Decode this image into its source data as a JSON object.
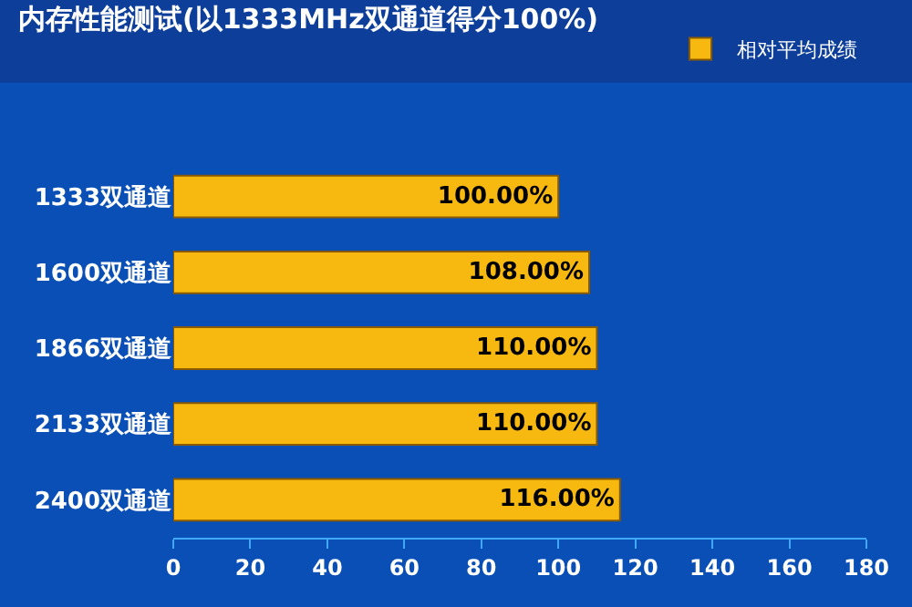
{
  "chart_data": {
    "type": "bar",
    "orientation": "horizontal",
    "title": "内存性能测试(以1333MHz双通道得分100%)",
    "categories": [
      "1333双通道",
      "1600双通道",
      "1866双通道",
      "2133双通道",
      "2400双通道"
    ],
    "series": [
      {
        "name": "相对平均成绩",
        "color": "#f7b90f",
        "values": [
          100,
          108,
          110,
          110,
          116
        ],
        "value_labels": [
          "100.00%",
          "108.00%",
          "110.00%",
          "110.00%",
          "116.00%"
        ]
      }
    ],
    "xlim": [
      0,
      180
    ],
    "xticks": [
      0,
      20,
      40,
      60,
      80,
      100,
      120,
      140,
      160,
      180
    ],
    "grid": false,
    "legend": "top right"
  }
}
